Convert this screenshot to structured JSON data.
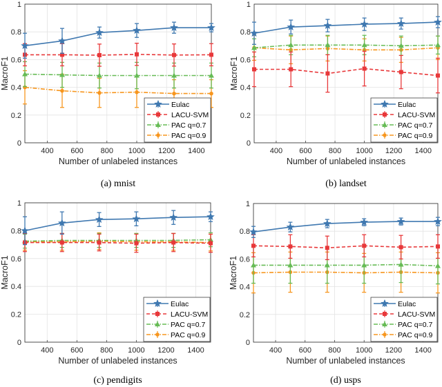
{
  "chart_data": [
    {
      "type": "line",
      "caption": "(a)  mnist",
      "xlabel": "Number of unlabeled instances",
      "ylabel": "MacroF1",
      "xlim": [
        250,
        1500
      ],
      "ylim": [
        0,
        1
      ],
      "xticks": [
        400,
        600,
        800,
        1000,
        1200,
        1400
      ],
      "yticks": [
        0,
        0.2,
        0.4,
        0.6,
        0.8,
        1
      ],
      "grid": true,
      "legend": "bottom-right",
      "x": [
        250,
        500,
        750,
        1000,
        1250,
        1500
      ],
      "series": [
        {
          "name": "Eulac",
          "values": [
            0.7,
            0.735,
            0.795,
            0.81,
            0.83,
            0.83
          ],
          "error": [
            0.09,
            0.09,
            0.04,
            0.05,
            0.04,
            0.03
          ]
        },
        {
          "name": "LACU-SVM",
          "values": [
            0.635,
            0.635,
            0.632,
            0.638,
            0.633,
            0.635
          ],
          "error": [
            0.08,
            0.08,
            0.08,
            0.08,
            0.08,
            0.08
          ]
        },
        {
          "name": "PAC q=0.7",
          "values": [
            0.495,
            0.49,
            0.485,
            0.485,
            0.485,
            0.485
          ],
          "error": [
            0.09,
            0.09,
            0.09,
            0.095,
            0.09,
            0.09
          ]
        },
        {
          "name": "PAC q=0.9",
          "values": [
            0.4,
            0.375,
            0.36,
            0.365,
            0.355,
            0.355
          ],
          "error": [
            0.12,
            0.12,
            0.105,
            0.11,
            0.1,
            0.1
          ]
        }
      ]
    },
    {
      "type": "line",
      "caption": "(b)  landset",
      "xlabel": "Number of unlabeled instances",
      "ylabel": "MacroF1",
      "xlim": [
        250,
        1500
      ],
      "ylim": [
        0,
        1
      ],
      "xticks": [
        400,
        600,
        800,
        1000,
        1200,
        1400
      ],
      "yticks": [
        0,
        0.2,
        0.4,
        0.6,
        0.8,
        1
      ],
      "grid": true,
      "legend": "bottom-right",
      "x": [
        250,
        500,
        750,
        1000,
        1250,
        1500
      ],
      "series": [
        {
          "name": "Eulac",
          "values": [
            0.79,
            0.835,
            0.845,
            0.855,
            0.86,
            0.87
          ],
          "error": [
            0.08,
            0.05,
            0.045,
            0.045,
            0.04,
            0.04
          ]
        },
        {
          "name": "LACU-SVM",
          "values": [
            0.53,
            0.53,
            0.5,
            0.535,
            0.51,
            0.485
          ],
          "error": [
            0.125,
            0.125,
            0.135,
            0.125,
            0.12,
            0.125
          ]
        },
        {
          "name": "PAC q=0.7",
          "values": [
            0.685,
            0.705,
            0.705,
            0.705,
            0.7,
            0.705
          ],
          "error": [
            0.065,
            0.07,
            0.07,
            0.07,
            0.07,
            0.065
          ]
        },
        {
          "name": "PAC q=0.9",
          "values": [
            0.685,
            0.67,
            0.68,
            0.67,
            0.67,
            0.685
          ],
          "error": [
            0.09,
            0.1,
            0.09,
            0.08,
            0.09,
            0.085
          ]
        }
      ]
    },
    {
      "type": "line",
      "caption": "(c)  pendigits",
      "xlabel": "Number of unlabeled instances",
      "ylabel": "MacroF1",
      "xlim": [
        250,
        1500
      ],
      "ylim": [
        0,
        1
      ],
      "xticks": [
        400,
        600,
        800,
        1000,
        1200,
        1400
      ],
      "yticks": [
        0,
        0.2,
        0.4,
        0.6,
        0.8,
        1
      ],
      "grid": true,
      "legend": "bottom-right",
      "x": [
        250,
        500,
        750,
        1000,
        1250,
        1500
      ],
      "series": [
        {
          "name": "Eulac",
          "values": [
            0.8,
            0.855,
            0.88,
            0.885,
            0.895,
            0.9
          ],
          "error": [
            0.1,
            0.08,
            0.05,
            0.05,
            0.05,
            0.035
          ]
        },
        {
          "name": "LACU-SVM",
          "values": [
            0.715,
            0.715,
            0.715,
            0.71,
            0.715,
            0.71
          ],
          "error": [
            0.065,
            0.065,
            0.06,
            0.065,
            0.065,
            0.065
          ]
        },
        {
          "name": "PAC q=0.7",
          "values": [
            0.725,
            0.73,
            0.73,
            0.73,
            0.73,
            0.735
          ],
          "error": [
            0.05,
            0.05,
            0.05,
            0.05,
            0.05,
            0.05
          ]
        },
        {
          "name": "PAC q=0.9",
          "values": [
            0.72,
            0.72,
            0.725,
            0.72,
            0.72,
            0.715
          ],
          "error": [
            0.06,
            0.06,
            0.06,
            0.06,
            0.06,
            0.06
          ]
        }
      ]
    },
    {
      "type": "line",
      "caption": "(d)  usps",
      "xlabel": "Number of unlabeled instances",
      "ylabel": "MacroF1",
      "xlim": [
        250,
        1500
      ],
      "ylim": [
        0,
        1
      ],
      "xticks": [
        400,
        600,
        800,
        1000,
        1200,
        1400
      ],
      "yticks": [
        0,
        0.2,
        0.4,
        0.6,
        0.8,
        1
      ],
      "grid": true,
      "legend": "bottom-right",
      "x": [
        250,
        500,
        750,
        1000,
        1250,
        1500
      ],
      "series": [
        {
          "name": "Eulac",
          "values": [
            0.795,
            0.83,
            0.855,
            0.865,
            0.87,
            0.87
          ],
          "error": [
            0.04,
            0.035,
            0.03,
            0.025,
            0.025,
            0.03
          ]
        },
        {
          "name": "LACU-SVM",
          "values": [
            0.695,
            0.69,
            0.68,
            0.695,
            0.685,
            0.69
          ],
          "error": [
            0.08,
            0.085,
            0.085,
            0.08,
            0.085,
            0.085
          ]
        },
        {
          "name": "PAC q=0.7",
          "values": [
            0.555,
            0.555,
            0.555,
            0.555,
            0.56,
            0.55
          ],
          "error": [
            0.13,
            0.13,
            0.13,
            0.13,
            0.13,
            0.13
          ]
        },
        {
          "name": "PAC q=0.9",
          "values": [
            0.5,
            0.505,
            0.505,
            0.5,
            0.505,
            0.5
          ],
          "error": [
            0.145,
            0.145,
            0.145,
            0.14,
            0.145,
            0.145
          ]
        }
      ]
    }
  ],
  "series_colors": [
    "#3f78b0",
    "#e8383a",
    "#66bb55",
    "#f7961e"
  ]
}
